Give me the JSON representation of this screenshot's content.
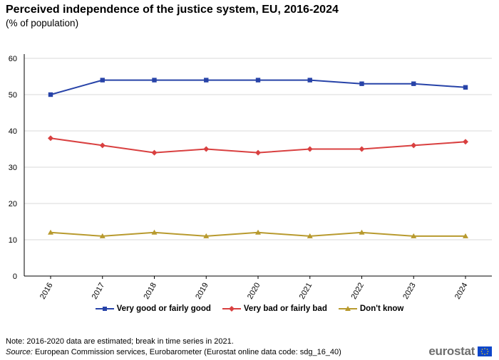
{
  "header": {
    "title": "Perceived independence of the justice system, EU, 2016-2024",
    "subtitle": "(% of population)"
  },
  "chart_data": {
    "type": "line",
    "categories": [
      "2016",
      "2017",
      "2018",
      "2019",
      "2020",
      "2021",
      "2022",
      "2023",
      "2024"
    ],
    "series": [
      {
        "name": "Very good or fairly good",
        "color": "#2743a8",
        "marker": "square",
        "values": [
          50,
          54,
          54,
          54,
          54,
          54,
          53,
          53,
          52
        ]
      },
      {
        "name": "Very bad or fairly bad",
        "color": "#d94040",
        "marker": "diamond",
        "values": [
          38,
          36,
          34,
          35,
          34,
          35,
          35,
          36,
          37
        ]
      },
      {
        "name": "Don't know",
        "color": "#b89a2e",
        "marker": "triangle",
        "values": [
          12,
          11,
          12,
          11,
          12,
          11,
          12,
          11,
          11
        ]
      }
    ],
    "ylim": [
      0,
      60
    ],
    "yticks": [
      "0",
      "10",
      "20",
      "30",
      "40",
      "50",
      "60"
    ],
    "grid": true,
    "legend_position": "bottom"
  },
  "footer": {
    "note": "Note: 2016-2020 data are estimated; break in time series in 2021.",
    "source_label": "Source:",
    "source_text": " European Commission services, Eurobarometer (Eurostat online data code: sdg_16_40)",
    "logo_text": "eurostat"
  }
}
